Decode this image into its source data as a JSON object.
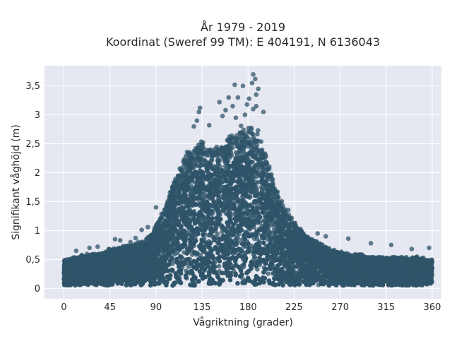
{
  "chart_data": {
    "type": "scatter",
    "title": "År 1979 - 2019",
    "subtitle": "Koordinat (Sweref 99 TM): E 404191, N 6136043",
    "xlabel": "Vågriktning (grader)",
    "ylabel": "Signifikant våghöjd (m)",
    "xlim": [
      -19,
      369
    ],
    "ylim": [
      -0.18,
      3.85
    ],
    "xticks": [
      0,
      45,
      90,
      135,
      180,
      225,
      270,
      315,
      360
    ],
    "xtick_labels": [
      "0",
      "45",
      "90",
      "135",
      "180",
      "225",
      "270",
      "315",
      "360"
    ],
    "yticks": [
      0,
      0.5,
      1,
      1.5,
      2,
      2.5,
      3,
      3.5
    ],
    "ytick_labels": [
      "0",
      "0,5",
      "1",
      "1,5",
      "2",
      "2,5",
      "3",
      "3,5"
    ],
    "grid": true,
    "legend": "none",
    "marker_color": "#2f5469",
    "plot_background": "#e5e8f0",
    "envelope": {
      "direction_deg": [
        0,
        10,
        20,
        30,
        40,
        45,
        50,
        60,
        70,
        80,
        85,
        90,
        95,
        100,
        105,
        110,
        115,
        120,
        125,
        130,
        135,
        140,
        145,
        150,
        155,
        160,
        165,
        170,
        175,
        180,
        185,
        190,
        195,
        200,
        205,
        210,
        215,
        220,
        225,
        230,
        240,
        250,
        260,
        270,
        280,
        290,
        300,
        315,
        330,
        345,
        360
      ],
      "max_height_m": [
        0.5,
        0.55,
        0.6,
        0.6,
        0.65,
        0.7,
        0.7,
        0.75,
        0.8,
        0.85,
        0.95,
        1.1,
        1.3,
        1.5,
        1.75,
        2.0,
        2.25,
        2.4,
        2.5,
        2.55,
        2.6,
        2.5,
        2.45,
        2.55,
        2.6,
        2.65,
        2.7,
        2.8,
        2.85,
        2.9,
        2.9,
        2.75,
        2.5,
        2.2,
        1.9,
        1.65,
        1.5,
        1.35,
        1.2,
        1.05,
        0.9,
        0.8,
        0.7,
        0.65,
        0.6,
        0.6,
        0.55,
        0.55,
        0.55,
        0.55,
        0.5
      ],
      "min_height_m": 0.05
    },
    "outliers": [
      {
        "x": 185,
        "y": 3.7
      },
      {
        "x": 187,
        "y": 3.62
      },
      {
        "x": 184,
        "y": 3.55
      },
      {
        "x": 175,
        "y": 3.5
      },
      {
        "x": 190,
        "y": 3.45
      },
      {
        "x": 188,
        "y": 3.35
      },
      {
        "x": 167,
        "y": 3.52
      },
      {
        "x": 170,
        "y": 3.3
      },
      {
        "x": 181,
        "y": 3.28
      },
      {
        "x": 161,
        "y": 3.3
      },
      {
        "x": 152,
        "y": 3.22
      },
      {
        "x": 179,
        "y": 3.18
      },
      {
        "x": 165,
        "y": 3.15
      },
      {
        "x": 188,
        "y": 3.15
      },
      {
        "x": 185,
        "y": 3.1
      },
      {
        "x": 158,
        "y": 3.08
      },
      {
        "x": 133,
        "y": 3.12
      },
      {
        "x": 132,
        "y": 3.05
      },
      {
        "x": 177,
        "y": 3.0
      },
      {
        "x": 168,
        "y": 2.95
      },
      {
        "x": 155,
        "y": 2.98
      },
      {
        "x": 195,
        "y": 3.05
      },
      {
        "x": 142,
        "y": 2.82
      },
      {
        "x": 130,
        "y": 2.9
      },
      {
        "x": 127,
        "y": 2.8
      },
      {
        "x": 104,
        "y": 1.18
      },
      {
        "x": 95,
        "y": 1.2
      },
      {
        "x": 90,
        "y": 1.4
      },
      {
        "x": 82,
        "y": 1.06
      },
      {
        "x": 76,
        "y": 1.01
      },
      {
        "x": 70,
        "y": 0.87
      },
      {
        "x": 50,
        "y": 0.85
      },
      {
        "x": 55,
        "y": 0.83
      },
      {
        "x": 65,
        "y": 0.8
      },
      {
        "x": 248,
        "y": 0.95
      },
      {
        "x": 256,
        "y": 0.9
      },
      {
        "x": 278,
        "y": 0.86
      },
      {
        "x": 300,
        "y": 0.78
      },
      {
        "x": 320,
        "y": 0.75
      },
      {
        "x": 340,
        "y": 0.68
      },
      {
        "x": 357,
        "y": 0.7
      },
      {
        "x": 25,
        "y": 0.7
      },
      {
        "x": 33,
        "y": 0.72
      },
      {
        "x": 12,
        "y": 0.65
      }
    ]
  }
}
